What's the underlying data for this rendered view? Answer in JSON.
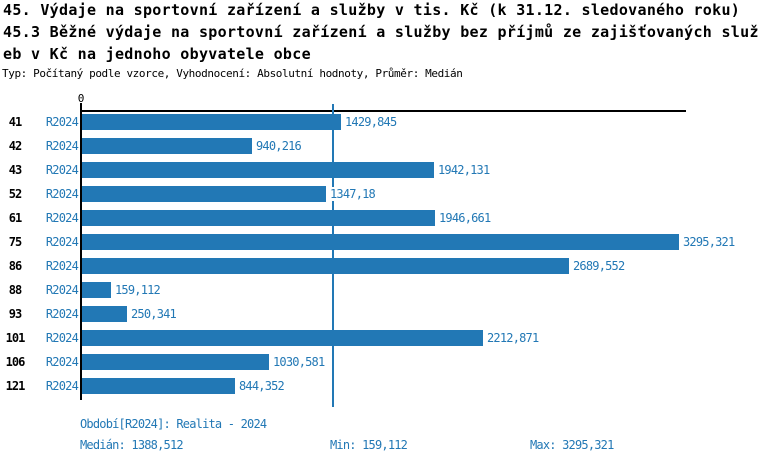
{
  "title": {
    "line1": "45. Výdaje na sportovní zařízení a služby v tis. Kč (k 31.12. sledovaného roku)",
    "line2": "45.3 Běžné výdaje na sportovní zařízení a služby bez příjmů ze zajišťovaných služ",
    "line3": "eb v Kč na jednoho obyvatele obce",
    "meta": "Typ: Počítaný podle vzorce, Vyhodnocení: Absolutní hodnoty, Průměr: Medián"
  },
  "chart_data": {
    "type": "bar",
    "orientation": "horizontal",
    "title": "45. Výdaje na sportovní zařízení a služby v tis. Kč (k 31.12. sledovaného roku) — 45.3 Běžné výdaje na sportovní zařízení a služby bez příjmů ze zajišťovaných služeb v Kč na jednoho obyvatele obce",
    "axis_zero_label": "0",
    "categories": [
      "41",
      "42",
      "43",
      "52",
      "61",
      "75",
      "86",
      "88",
      "93",
      "101",
      "106",
      "121"
    ],
    "series": [
      {
        "name": "R2024",
        "values": [
          1429.845,
          940.216,
          1942.131,
          1347.18,
          1946.661,
          3295.321,
          2689.552,
          159.112,
          250.341,
          2212.871,
          1030.581,
          844.352
        ],
        "labels": [
          "1429,845",
          "940,216",
          "1942,131",
          "1347,18",
          "1946,661",
          "3295,321",
          "2689,552",
          "159,112",
          "250,341",
          "2212,871",
          "1030,581",
          "844,352"
        ]
      }
    ],
    "median": 1388.512,
    "min": 159.112,
    "max": 3295.321,
    "xlim": [
      0,
      3340
    ],
    "grid": false,
    "legend": false,
    "bar_color": "#2278b5",
    "accent_color": "#2278b5",
    "axis_color": "#000000"
  },
  "footer": {
    "period_info": "Období[R2024]: Realita - 2024",
    "median_label": "Medián: 1388,512",
    "min_label": "Min: 159,112",
    "max_label": "Max: 3295,321"
  }
}
